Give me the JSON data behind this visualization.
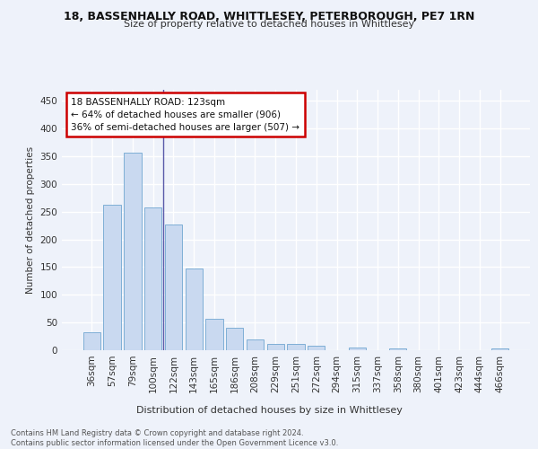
{
  "title_line1": "18, BASSENHALLY ROAD, WHITTLESEY, PETERBOROUGH, PE7 1RN",
  "title_line2": "Size of property relative to detached houses in Whittlesey",
  "xlabel": "Distribution of detached houses by size in Whittlesey",
  "ylabel": "Number of detached properties",
  "categories": [
    "36sqm",
    "57sqm",
    "79sqm",
    "100sqm",
    "122sqm",
    "143sqm",
    "165sqm",
    "186sqm",
    "208sqm",
    "229sqm",
    "251sqm",
    "272sqm",
    "294sqm",
    "315sqm",
    "337sqm",
    "358sqm",
    "380sqm",
    "401sqm",
    "423sqm",
    "444sqm",
    "466sqm"
  ],
  "values": [
    33,
    262,
    356,
    258,
    227,
    148,
    56,
    41,
    20,
    11,
    11,
    8,
    0,
    5,
    0,
    4,
    0,
    0,
    0,
    0,
    4
  ],
  "bar_color": "#c9d9f0",
  "bar_edge_color": "#7fafd6",
  "vline_color": "#5a5aaa",
  "annotation_text": "18 BASSENHALLY ROAD: 123sqm\n← 64% of detached houses are smaller (906)\n36% of semi-detached houses are larger (507) →",
  "annotation_box_color": "#cc0000",
  "footer_text": "Contains HM Land Registry data © Crown copyright and database right 2024.\nContains public sector information licensed under the Open Government Licence v3.0.",
  "ylim": [
    0,
    470
  ],
  "background_color": "#eef2fa",
  "grid_color": "#ffffff"
}
